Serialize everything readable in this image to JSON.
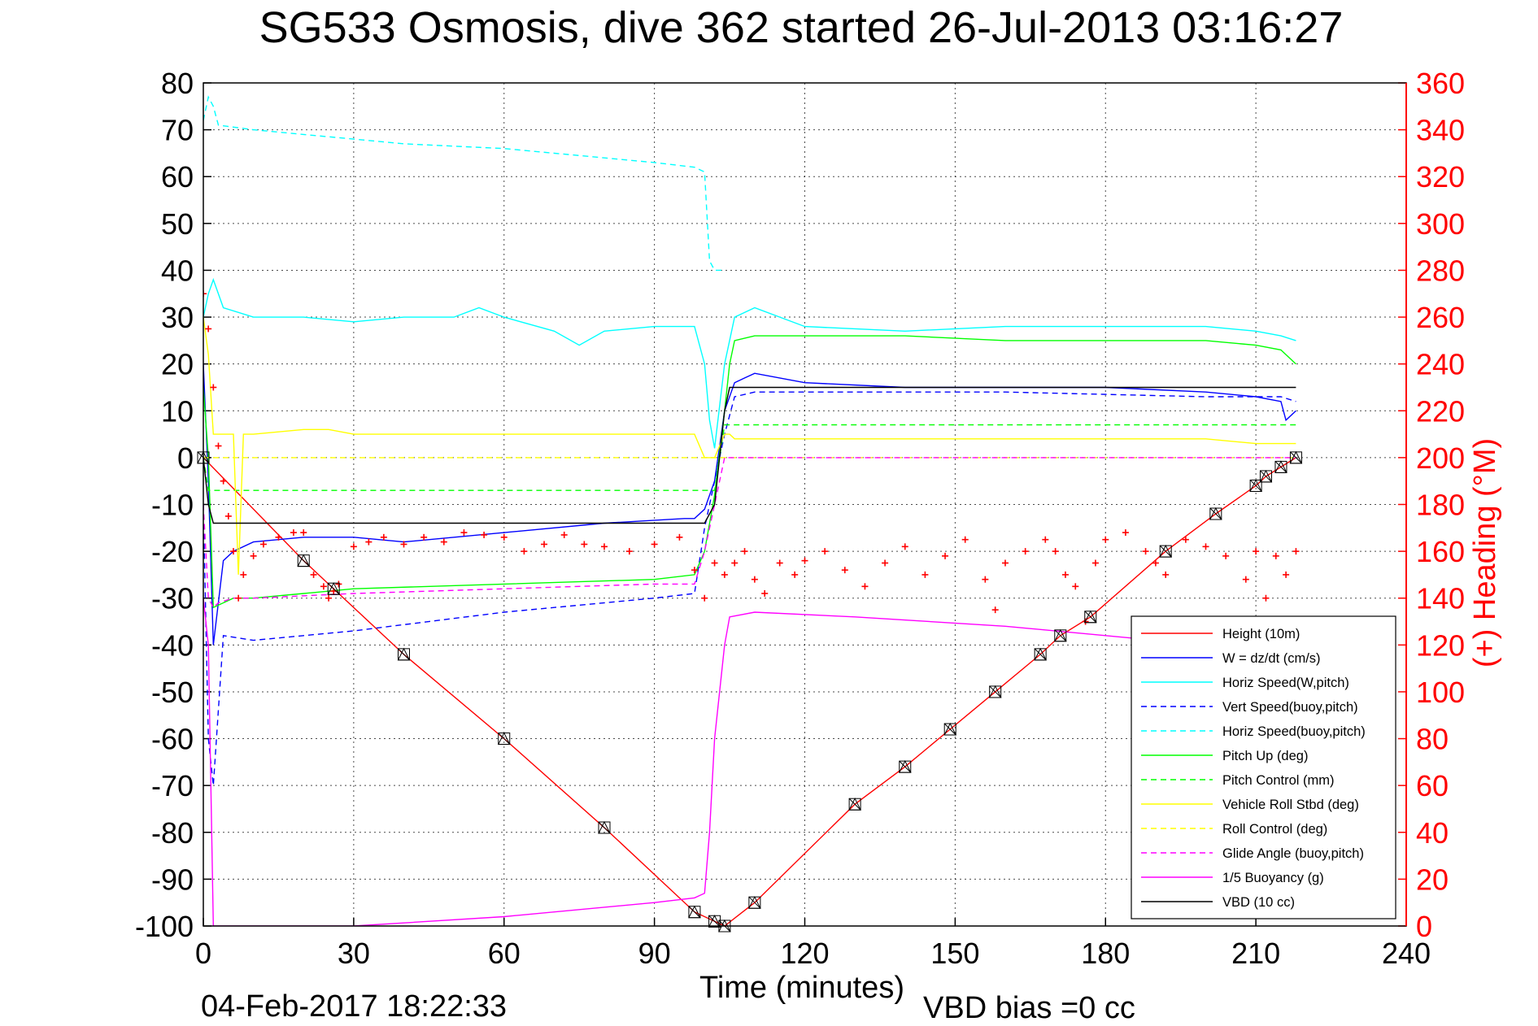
{
  "chart_data": {
    "type": "line",
    "title": "SG533 Osmosis, dive 362 started 26-Jul-2013 03:16:27",
    "xlabel": "Time (minutes)",
    "ylabel": "",
    "y2label": "(+) Heading (°M)",
    "xlim": [
      0,
      240
    ],
    "ylim": [
      -100,
      80
    ],
    "y2lim": [
      0,
      360
    ],
    "xticks": [
      "0",
      "30",
      "60",
      "90",
      "120",
      "150",
      "180",
      "210",
      "240"
    ],
    "yticks": [
      "80",
      "70",
      "60",
      "50",
      "40",
      "30",
      "20",
      "10",
      "0",
      "-10",
      "-20",
      "-30",
      "-40",
      "-50",
      "-60",
      "-70",
      "-80",
      "-90",
      "-100"
    ],
    "y2ticks": [
      "360",
      "340",
      "320",
      "300",
      "280",
      "260",
      "240",
      "220",
      "200",
      "180",
      "160",
      "140",
      "120",
      "100",
      "80",
      "60",
      "40",
      "20",
      "0"
    ],
    "grid": true,
    "legend_position": "bottom-right",
    "footer_date": "04-Feb-2017 18:22:33",
    "footer_bias": "VBD bias =0 cc",
    "colors": {
      "red": "#ff0000",
      "blue": "#0000ff",
      "cyan": "#00ffff",
      "green": "#00ff00",
      "yellow": "#ffff00",
      "magenta": "#ff00ff",
      "black": "#000000"
    },
    "series": [
      {
        "name": "Height (10m)",
        "color": "#ff0000",
        "dash": false,
        "x": [
          0,
          20,
          26,
          40,
          60,
          80,
          98,
          102,
          104,
          110,
          130,
          140,
          149,
          158,
          167,
          171,
          177,
          192,
          202,
          210,
          212,
          215,
          218
        ],
        "y": [
          0,
          -22,
          -28,
          -42,
          -60,
          -79,
          -97,
          -99,
          -100,
          -95,
          -74,
          -66,
          -58,
          -50,
          -42,
          -38,
          -34,
          -20,
          -12,
          -6,
          -4,
          -2,
          0
        ]
      },
      {
        "name": "W = dz/dt (cm/s)",
        "color": "#0000ff",
        "dash": false,
        "x": [
          0,
          1,
          2,
          4,
          6,
          10,
          20,
          30,
          40,
          60,
          80,
          96,
          98,
          100,
          102,
          104,
          106,
          108,
          110,
          120,
          140,
          160,
          180,
          200,
          210,
          215,
          216,
          218
        ],
        "y": [
          20,
          -5,
          -40,
          -22,
          -20,
          -18,
          -17,
          -17,
          -18,
          -16,
          -14,
          -13,
          -13,
          -11,
          -5,
          10,
          16,
          17,
          18,
          16,
          15,
          15,
          15,
          14,
          13,
          12,
          8,
          10
        ]
      },
      {
        "name": "Horiz Speed(W,pitch)",
        "color": "#00ffff",
        "dash": false,
        "x": [
          0,
          1,
          2,
          4,
          10,
          20,
          30,
          40,
          50,
          55,
          60,
          70,
          75,
          80,
          90,
          98,
          100,
          101,
          102,
          104,
          106,
          110,
          120,
          140,
          160,
          180,
          200,
          210,
          215,
          218
        ],
        "y": [
          30,
          35,
          38,
          32,
          30,
          30,
          29,
          30,
          30,
          32,
          30,
          27,
          24,
          27,
          28,
          28,
          20,
          8,
          2,
          20,
          30,
          32,
          28,
          27,
          28,
          28,
          28,
          27,
          26,
          25
        ]
      },
      {
        "name": "Vert Speed(buoy,pitch)",
        "color": "#0000ff",
        "dash": true,
        "x": [
          0,
          1,
          2,
          4,
          10,
          20,
          30,
          60,
          90,
          98,
          100,
          102,
          104,
          106,
          110,
          120,
          160,
          200,
          215,
          218
        ],
        "y": [
          -10,
          -60,
          -70,
          -38,
          -39,
          -38,
          -37,
          -33,
          -30,
          -29,
          -15,
          -5,
          5,
          13,
          14,
          14,
          14,
          13,
          13,
          12
        ]
      },
      {
        "name": "Horiz Speed(buoy,pitch)",
        "color": "#00ffff",
        "dash": true,
        "x": [
          0,
          1,
          2,
          3,
          10,
          20,
          30,
          40,
          60,
          80,
          90,
          98,
          100,
          101,
          102,
          103,
          104
        ],
        "y": [
          72,
          77,
          75,
          71,
          70,
          69,
          68,
          67,
          66,
          64,
          63,
          62,
          61,
          42,
          40,
          40,
          40
        ]
      },
      {
        "name": "Pitch Up (deg)",
        "color": "#00ff00",
        "dash": false,
        "x": [
          0,
          1,
          2,
          6,
          8,
          10,
          20,
          30,
          60,
          90,
          98,
          100,
          102,
          104,
          105,
          106,
          110,
          120,
          140,
          160,
          180,
          200,
          210,
          215,
          218
        ],
        "y": [
          15,
          0,
          -32,
          -30,
          -30,
          -30,
          -29,
          -28,
          -27,
          -26,
          -25,
          -20,
          -8,
          10,
          20,
          25,
          26,
          26,
          26,
          25,
          25,
          25,
          24,
          23,
          20
        ]
      },
      {
        "name": "Pitch Control (mm)",
        "color": "#00ff00",
        "dash": true,
        "x": [
          0,
          1,
          2,
          6,
          8,
          100,
          102,
          104,
          105,
          106,
          218
        ],
        "y": [
          0,
          -7,
          -7,
          -7,
          -7,
          -7,
          -7,
          7,
          7,
          7,
          7
        ]
      },
      {
        "name": "Vehicle Roll Stbd (deg)",
        "color": "#ffff00",
        "dash": false,
        "x": [
          0,
          1,
          2,
          5,
          6,
          7,
          8,
          10,
          20,
          25,
          30,
          40,
          60,
          80,
          98,
          100,
          102,
          104,
          105,
          106,
          110,
          120,
          140,
          160,
          180,
          200,
          210,
          215,
          218
        ],
        "y": [
          30,
          22,
          5,
          5,
          5,
          -25,
          5,
          5,
          6,
          6,
          5,
          5,
          5,
          5,
          5,
          0,
          0,
          5,
          5,
          4,
          4,
          4,
          4,
          4,
          4,
          4,
          3,
          3,
          3
        ]
      },
      {
        "name": "Roll Control (deg)",
        "color": "#ffff00",
        "dash": true,
        "x": [
          0,
          1,
          2,
          218
        ],
        "y": [
          0,
          0,
          0,
          0
        ]
      },
      {
        "name": "Glide Angle (buoy,pitch)",
        "color": "#ff00ff",
        "dash": true,
        "x": [
          0,
          1,
          2,
          3,
          6,
          8,
          10,
          30,
          60,
          90,
          98,
          100,
          102,
          104,
          106,
          110,
          218
        ],
        "y": [
          -10,
          -30,
          -32,
          -31,
          -30,
          -30,
          -30,
          -29,
          -28,
          -27,
          -27,
          -20,
          -10,
          0,
          0,
          0,
          0
        ]
      },
      {
        "name": "1/5 Buoyancy (g)",
        "color": "#ff00ff",
        "dash": false,
        "x": [
          0,
          1,
          2,
          3,
          4,
          30,
          60,
          90,
          98,
          100,
          101,
          102,
          104,
          105,
          110,
          130,
          160,
          180,
          200,
          210,
          218
        ],
        "y": [
          -30,
          -40,
          -100,
          -100,
          -100,
          -100,
          -98,
          -95,
          -94,
          -93,
          -80,
          -60,
          -40,
          -34,
          -33,
          -34,
          -36,
          -38,
          -40,
          -40,
          -40
        ]
      },
      {
        "name": "VBD (10 cc)",
        "color": "#000000",
        "dash": false,
        "x": [
          0,
          1,
          2,
          10,
          20,
          30,
          60,
          90,
          100,
          102,
          103,
          104,
          105,
          106,
          110,
          218
        ],
        "y": [
          0,
          -10,
          -14,
          -14,
          -14,
          -14,
          -14,
          -14,
          -14,
          -10,
          0,
          10,
          15,
          15,
          15,
          15
        ]
      }
    ],
    "heading_series": {
      "name": "Heading",
      "color": "#ff0000",
      "axis": "right",
      "marker": "+",
      "x": [
        0,
        1,
        2,
        3,
        4,
        5,
        6,
        7,
        8,
        10,
        12,
        15,
        18,
        20,
        22,
        24,
        25,
        26,
        27,
        30,
        33,
        36,
        40,
        44,
        48,
        52,
        56,
        60,
        64,
        68,
        72,
        76,
        80,
        85,
        90,
        95,
        98,
        100,
        102,
        104,
        106,
        108,
        110,
        112,
        115,
        118,
        120,
        124,
        128,
        132,
        136,
        140,
        144,
        148,
        152,
        156,
        158,
        160,
        164,
        168,
        170,
        172,
        174,
        176,
        178,
        180,
        184,
        188,
        190,
        192,
        196,
        200,
        204,
        208,
        210,
        212,
        214,
        216,
        218
      ],
      "y": [
        270,
        255,
        230,
        205,
        190,
        175,
        160,
        140,
        150,
        158,
        163,
        166,
        168,
        168,
        150,
        145,
        140,
        143,
        146,
        162,
        164,
        166,
        163,
        166,
        164,
        168,
        167,
        166,
        160,
        163,
        167,
        163,
        162,
        160,
        163,
        166,
        152,
        140,
        155,
        150,
        155,
        160,
        148,
        142,
        155,
        150,
        156,
        160,
        152,
        145,
        155,
        162,
        150,
        158,
        165,
        148,
        135,
        155,
        160,
        165,
        160,
        150,
        145,
        130,
        155,
        165,
        168,
        160,
        155,
        150,
        165,
        162,
        158,
        148,
        160,
        140,
        158,
        150,
        160
      ]
    }
  }
}
